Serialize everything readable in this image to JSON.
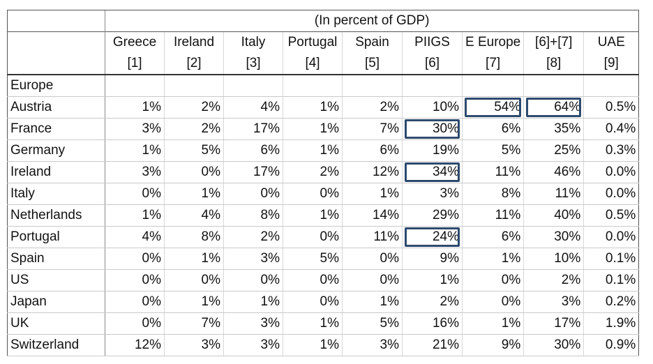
{
  "header": {
    "title": "(In percent of GDP)",
    "columns": [
      {
        "name": "Greece",
        "code": "[1]"
      },
      {
        "name": "Ireland",
        "code": "[2]"
      },
      {
        "name": "Italy",
        "code": "[3]"
      },
      {
        "name": "Portugal",
        "code": "[4]"
      },
      {
        "name": "Spain",
        "code": "[5]"
      },
      {
        "name": "PIIGS",
        "code": "[6]"
      },
      {
        "name": "E Europe",
        "code": "[7]"
      },
      {
        "name": "[6]+[7]",
        "code": "[8]"
      },
      {
        "name": "UAE",
        "code": "[9]"
      }
    ]
  },
  "group_label": "Europe",
  "rows": [
    {
      "label": "Austria",
      "values": [
        "1%",
        "2%",
        "4%",
        "1%",
        "2%",
        "10%",
        "54%",
        "64%",
        "0.5%"
      ]
    },
    {
      "label": "France",
      "values": [
        "3%",
        "2%",
        "17%",
        "1%",
        "7%",
        "30%",
        "6%",
        "35%",
        "0.4%"
      ]
    },
    {
      "label": "Germany",
      "values": [
        "1%",
        "5%",
        "6%",
        "1%",
        "6%",
        "19%",
        "5%",
        "25%",
        "0.3%"
      ]
    },
    {
      "label": "Ireland",
      "values": [
        "3%",
        "0%",
        "17%",
        "2%",
        "12%",
        "34%",
        "11%",
        "46%",
        "0.0%"
      ]
    },
    {
      "label": "Italy",
      "values": [
        "0%",
        "1%",
        "0%",
        "0%",
        "1%",
        "3%",
        "8%",
        "11%",
        "0.0%"
      ]
    },
    {
      "label": "Netherlands",
      "values": [
        "1%",
        "4%",
        "8%",
        "1%",
        "14%",
        "29%",
        "11%",
        "40%",
        "0.5%"
      ]
    },
    {
      "label": "Portugal",
      "values": [
        "4%",
        "8%",
        "2%",
        "0%",
        "11%",
        "24%",
        "6%",
        "30%",
        "0.0%"
      ]
    },
    {
      "label": "Spain",
      "values": [
        "0%",
        "1%",
        "3%",
        "5%",
        "0%",
        "9%",
        "1%",
        "10%",
        "0.1%"
      ]
    },
    {
      "label": "US",
      "values": [
        "0%",
        "0%",
        "0%",
        "0%",
        "0%",
        "1%",
        "0%",
        "2%",
        "0.1%"
      ]
    },
    {
      "label": "Japan",
      "values": [
        "0%",
        "1%",
        "1%",
        "0%",
        "1%",
        "2%",
        "0%",
        "3%",
        "0.2%"
      ]
    },
    {
      "label": "UK",
      "values": [
        "0%",
        "7%",
        "3%",
        "1%",
        "5%",
        "16%",
        "1%",
        "17%",
        "1.9%"
      ]
    },
    {
      "label": "Switzerland",
      "values": [
        "12%",
        "3%",
        "3%",
        "1%",
        "3%",
        "21%",
        "9%",
        "30%",
        "0.9%"
      ]
    }
  ],
  "highlight_color": "#2e4a6e"
}
